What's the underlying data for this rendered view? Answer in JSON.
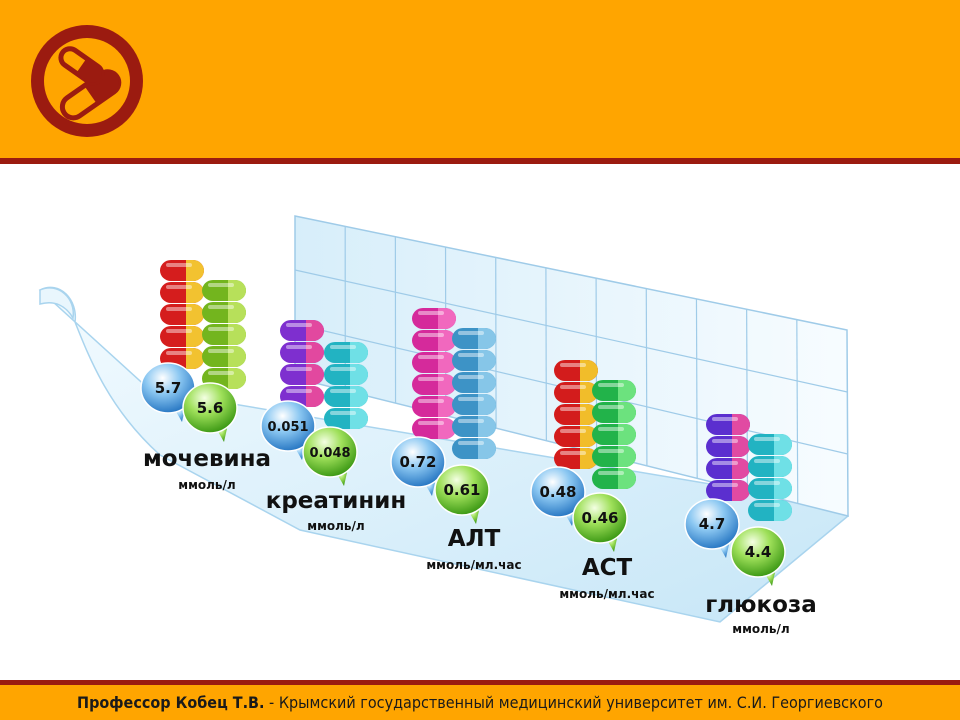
{
  "footer": {
    "author": "Профессор Кобец Т.В.",
    "separator": " - ",
    "institution": "Крымский государственный медицинский университет им. С.И. Георгиевского"
  },
  "logo": {
    "icon": "pill-capsule-icon"
  },
  "colors": {
    "header": "#FFA500",
    "accent": "#9B1B10"
  },
  "chart_data": {
    "type": "bar",
    "categories": [
      {
        "name": "мочевина",
        "unit": "ммоль/л"
      },
      {
        "name": "креатинин",
        "unit": "ммоль/л"
      },
      {
        "name": "АЛТ",
        "unit": "ммоль/мл.час"
      },
      {
        "name": "АСТ",
        "unit": "ммоль/мл.час"
      },
      {
        "name": "глюкоза",
        "unit": "ммоль/л"
      }
    ],
    "series": [
      {
        "values": [
          "5.7",
          "0.051",
          "0.72",
          "0.48",
          "4.7"
        ]
      },
      {
        "values": [
          "5.6",
          "0.048",
          "0.61",
          "0.46",
          "4.4"
        ]
      }
    ],
    "grid": true,
    "legend": "none"
  }
}
